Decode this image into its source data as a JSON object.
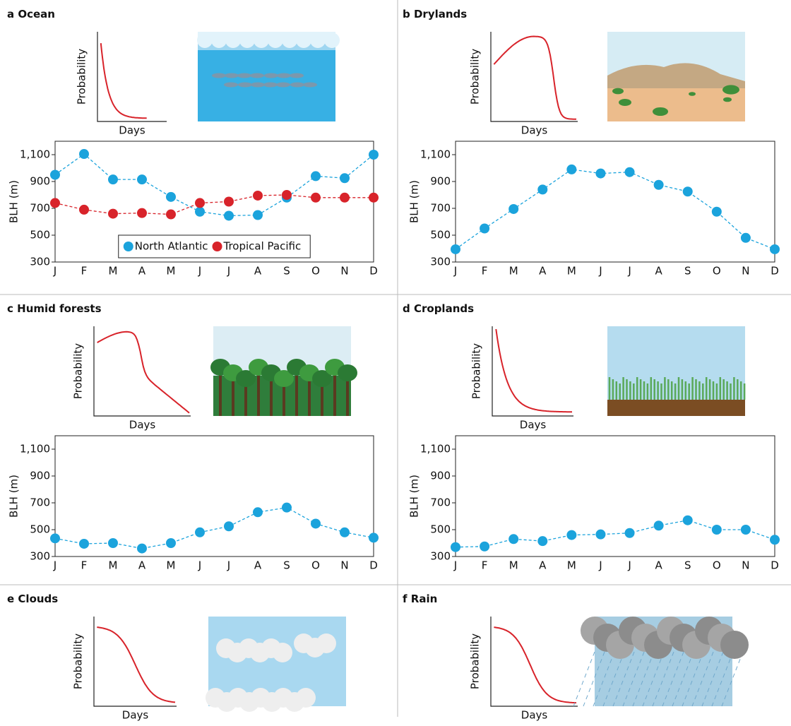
{
  "panels": [
    {
      "label": "a",
      "title": "Ocean",
      "ylabel": "Probability",
      "xlabel": "Days"
    },
    {
      "label": "b",
      "title": "Drylands",
      "ylabel": "Probability",
      "xlabel": "Days"
    },
    {
      "label": "c",
      "title": "Humid forests",
      "ylabel": "Probability",
      "xlabel": "Days"
    },
    {
      "label": "d",
      "title": "Croplands",
      "ylabel": "Probability",
      "xlabel": "Days"
    },
    {
      "label": "e",
      "title": "Clouds",
      "ylabel": "Probability",
      "xlabel": "Days"
    },
    {
      "label": "f",
      "title": "Rain",
      "ylabel": "Probability",
      "xlabel": "Days"
    }
  ],
  "chart_data": [
    {
      "type": "line",
      "ylabel": "BLH (m)",
      "categories": [
        "J",
        "F",
        "M",
        "A",
        "M",
        "J",
        "J",
        "A",
        "S",
        "O",
        "N",
        "D"
      ],
      "series": [
        {
          "name": "North Atlantic",
          "color": "#1ba3dc",
          "values": [
            950,
            1105,
            915,
            915,
            785,
            675,
            645,
            650,
            780,
            940,
            925,
            1100
          ]
        },
        {
          "name": "Tropical Pacific",
          "color": "#d8232a",
          "values": [
            740,
            690,
            660,
            665,
            655,
            740,
            750,
            795,
            800,
            780,
            780,
            780
          ]
        }
      ],
      "ylim": [
        300,
        1200
      ],
      "yticks": [
        300,
        500,
        700,
        900,
        {
          "value": 1100,
          "label": "1,100"
        }
      ],
      "grid": false,
      "legend": "lower center"
    },
    {
      "type": "line",
      "ylabel": "BLH (m)",
      "categories": [
        "J",
        "F",
        "M",
        "A",
        "M",
        "J",
        "J",
        "A",
        "S",
        "O",
        "N",
        "D"
      ],
      "series": [
        {
          "color": "#1ba3dc",
          "values": [
            395,
            550,
            695,
            840,
            990,
            960,
            970,
            875,
            825,
            675,
            480,
            395
          ]
        }
      ],
      "ylim": [
        300,
        1200
      ],
      "yticks": [
        300,
        500,
        700,
        900,
        {
          "value": 1100,
          "label": "1,100"
        }
      ],
      "grid": false
    },
    {
      "type": "line",
      "ylabel": "BLH (m)",
      "categories": [
        "J",
        "F",
        "M",
        "A",
        "M",
        "J",
        "J",
        "A",
        "S",
        "O",
        "N",
        "D"
      ],
      "series": [
        {
          "color": "#1ba3dc",
          "values": [
            435,
            395,
            400,
            360,
            400,
            480,
            525,
            630,
            665,
            545,
            480,
            440
          ]
        }
      ],
      "ylim": [
        300,
        1200
      ],
      "yticks": [
        300,
        500,
        700,
        900,
        {
          "value": 1100,
          "label": "1,100"
        }
      ],
      "grid": false
    },
    {
      "type": "line",
      "ylabel": "BLH (m)",
      "categories": [
        "J",
        "F",
        "M",
        "A",
        "M",
        "J",
        "J",
        "A",
        "S",
        "O",
        "N",
        "D"
      ],
      "series": [
        {
          "color": "#1ba3dc",
          "values": [
            370,
            375,
            430,
            415,
            460,
            465,
            475,
            530,
            570,
            500,
            500,
            425
          ]
        }
      ],
      "ylim": [
        300,
        1200
      ],
      "yticks": [
        300,
        500,
        700,
        900,
        {
          "value": 1100,
          "label": "1,100"
        }
      ],
      "grid": false
    }
  ]
}
